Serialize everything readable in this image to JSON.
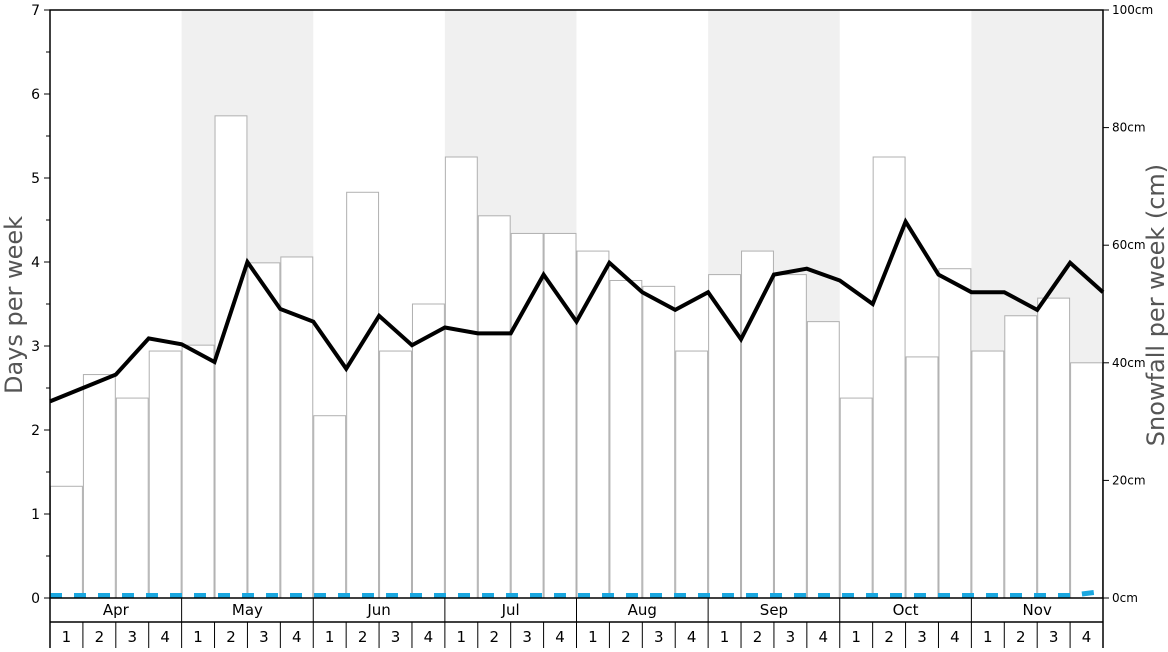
{
  "chart_data": {
    "type": "bar",
    "title": "",
    "ylabel_left": "Days per week",
    "ylabel_right": "Snowfall per week (cm)",
    "ylim_left": [
      0,
      7
    ],
    "ylim_right": [
      0,
      100
    ],
    "left_ticks": [
      "0",
      "1",
      "2",
      "3",
      "4",
      "5",
      "6",
      "7"
    ],
    "right_ticks": [
      "0cm",
      "20cm",
      "40cm",
      "60cm",
      "80cm",
      "100cm"
    ],
    "months": [
      "Apr",
      "May",
      "Jun",
      "Jul",
      "Aug",
      "Sep",
      "Oct",
      "Nov"
    ],
    "weeks": [
      "1",
      "2",
      "3",
      "4"
    ],
    "shaded_months": [
      "May",
      "Jul",
      "Sep",
      "Nov"
    ],
    "colors": {
      "shade": "#f0f0f0",
      "bar_fill": "#ffffff",
      "bar_stroke": "#b0b0b0",
      "line": "#000000",
      "dashed_line": "#1aa7e0"
    },
    "series": [
      {
        "type": "bar",
        "axis": "right",
        "values": [
          19,
          38,
          34,
          42,
          43,
          82,
          57,
          58,
          31,
          69,
          42,
          50,
          75,
          65,
          62,
          62,
          59,
          54,
          53,
          42,
          55,
          59,
          55,
          47,
          34,
          75,
          41,
          56,
          42,
          48,
          51,
          40
        ]
      },
      {
        "type": "line",
        "axis": "left",
        "values": [
          2.34,
          2.5,
          2.66,
          3.09,
          3.02,
          2.81,
          4.0,
          3.44,
          3.29,
          2.73,
          3.36,
          3.01,
          3.22,
          3.15,
          3.15,
          3.85,
          3.29,
          3.99,
          3.64,
          3.43,
          3.64,
          3.08,
          3.85,
          3.92,
          3.78,
          3.5,
          4.48,
          3.85,
          3.64,
          3.64,
          3.43,
          3.99,
          3.64
        ]
      },
      {
        "type": "line",
        "axis": "left",
        "style": "dashed",
        "values": [
          0.03,
          0.03,
          0.03,
          0.03,
          0.03,
          0.03,
          0.03,
          0.03,
          0.03,
          0.03,
          0.03,
          0.03,
          0.03,
          0.03,
          0.03,
          0.03,
          0.03,
          0.03,
          0.03,
          0.03,
          0.03,
          0.03,
          0.03,
          0.03,
          0.03,
          0.03,
          0.03,
          0.03,
          0.03,
          0.03,
          0.03,
          0.03,
          0.08
        ]
      }
    ]
  }
}
